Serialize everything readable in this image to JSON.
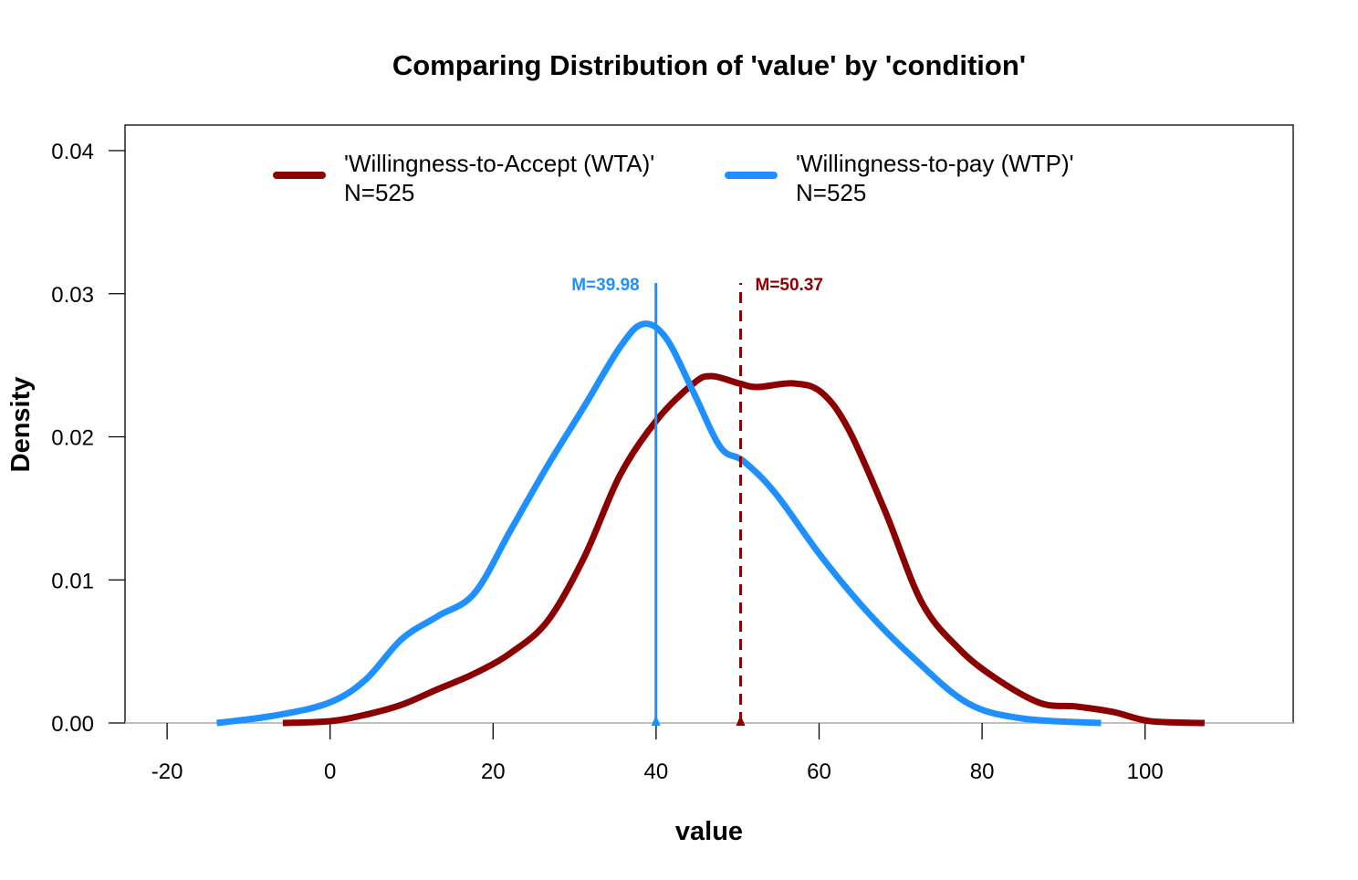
{
  "chart_data": {
    "type": "line",
    "title": "Comparing Distribution of 'value' by 'condition'",
    "xlabel": "value",
    "ylabel": "Density",
    "xlim": [
      -25,
      118
    ],
    "ylim": [
      0,
      0.0418
    ],
    "x_ticks": [
      -20,
      0,
      20,
      40,
      60,
      80,
      100
    ],
    "x_tick_labels": [
      "-20",
      "0",
      "20",
      "40",
      "60",
      "80",
      "100"
    ],
    "y_ticks": [
      0,
      0.01,
      0.02,
      0.03,
      0.04
    ],
    "y_tick_labels": [
      "0.00",
      "0.01",
      "0.02",
      "0.03",
      "0.04"
    ],
    "grid": false,
    "legend_position": "top",
    "series": [
      {
        "name": "'Willingness-to-Accept (WTA)'",
        "n_label": "N=525",
        "color": "#8B0000",
        "mean": 50.37,
        "mean_label": "M=50.37",
        "mean_line_style": "dashed",
        "x": [
          -5.8,
          0,
          4.3,
          8.8,
          13.2,
          17.7,
          22.2,
          26.7,
          31.2,
          35.6,
          40.1,
          44.6,
          46.8,
          50.2,
          52.4,
          56.9,
          60.3,
          63.6,
          68.1,
          72.6,
          77.1,
          81.5,
          87.1,
          91.6,
          96.1,
          100.6,
          107.3
        ],
        "y": [
          0,
          0.00013,
          0.00057,
          0.00128,
          0.00236,
          0.00345,
          0.00491,
          0.00714,
          0.01161,
          0.01735,
          0.02118,
          0.02373,
          0.02424,
          0.02373,
          0.02348,
          0.02373,
          0.0231,
          0.02054,
          0.0148,
          0.00842,
          0.00523,
          0.00319,
          0.0014,
          0.00115,
          0.00077,
          0.00013,
          0
        ]
      },
      {
        "name": "'Willingness-to-pay (WTP)'",
        "n_label": "N=525",
        "color": "#1E90FF",
        "mean": 39.98,
        "mean_label": "M=39.98",
        "mean_line_style": "solid",
        "x": [
          -13.9,
          -6.9,
          -0.2,
          4.3,
          8.8,
          13.2,
          17.7,
          22.2,
          26.7,
          31.2,
          35.6,
          38.4,
          41.2,
          44.6,
          47.9,
          50.7,
          54.6,
          60.3,
          65.9,
          71.5,
          78.2,
          84.9,
          94.6
        ],
        "y": [
          0,
          0.00051,
          0.0014,
          0.003,
          0.00587,
          0.00746,
          0.00906,
          0.01352,
          0.01799,
          0.02214,
          0.02629,
          0.02788,
          0.02692,
          0.0231,
          0.01927,
          0.01831,
          0.01608,
          0.01161,
          0.00778,
          0.00459,
          0.0014,
          0.00032,
          0
        ]
      }
    ]
  }
}
